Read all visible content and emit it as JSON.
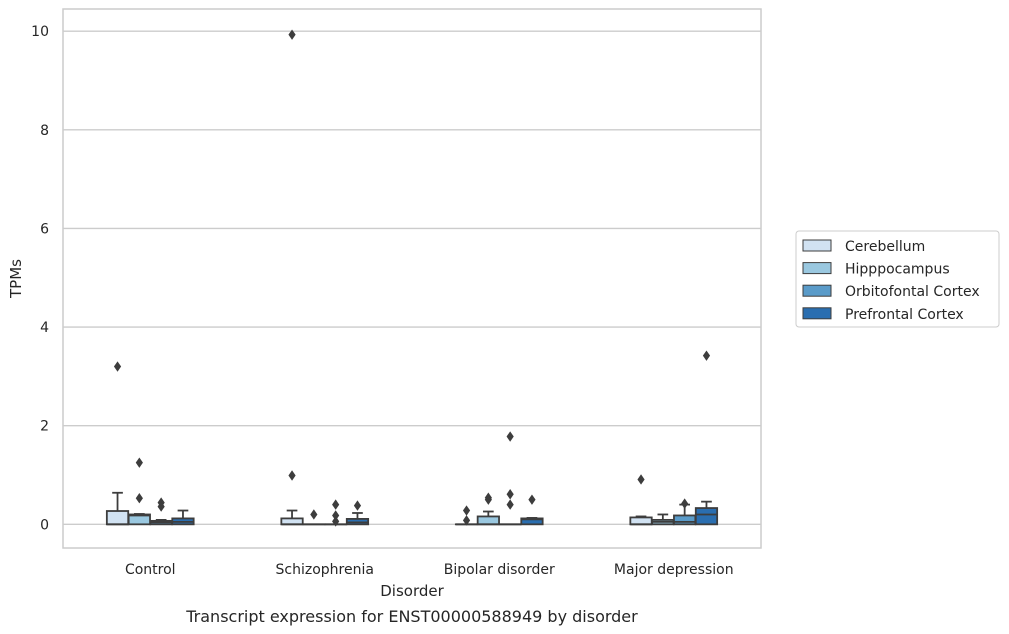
{
  "chart_data": {
    "type": "box",
    "caption": "Transcript expression for ENST00000588949 by disorder",
    "xlabel": "Disorder",
    "ylabel": "TPMs",
    "ylim": [
      -0.48,
      10.45
    ],
    "yticks": [
      0,
      2,
      4,
      6,
      8,
      10
    ],
    "grid": true,
    "legend_placement": "right",
    "categories": [
      "Control",
      "Schizophrenia",
      "Bipolar disorder",
      "Major depression"
    ],
    "series": [
      {
        "name": "Cerebellum",
        "color": "#d1e2f2",
        "boxes": [
          {
            "min": 0,
            "q1": 0,
            "median": 0,
            "q3": 0.27,
            "max": 0.64,
            "outliers": [
              3.2
            ]
          },
          {
            "min": 0,
            "q1": 0,
            "median": 0,
            "q3": 0.12,
            "max": 0.28,
            "outliers": [
              9.93,
              0.99
            ]
          },
          {
            "min": 0,
            "q1": 0,
            "median": 0,
            "q3": 0,
            "max": 0,
            "outliers": [
              0.28,
              0.08
            ]
          },
          {
            "min": 0,
            "q1": 0,
            "median": 0,
            "q3": 0.14,
            "max": 0.16,
            "outliers": [
              0.91
            ]
          }
        ]
      },
      {
        "name": "Hipppocampus",
        "color": "#9ac8e0",
        "boxes": [
          {
            "min": 0,
            "q1": 0,
            "median": 0.18,
            "q3": 0.2,
            "max": 0.21,
            "outliers": [
              1.25,
              0.53
            ]
          },
          {
            "min": 0,
            "q1": 0,
            "median": 0,
            "q3": 0,
            "max": 0,
            "outliers": [
              0.2
            ]
          },
          {
            "min": 0,
            "q1": 0,
            "median": 0,
            "q3": 0.16,
            "max": 0.26,
            "outliers": [
              0.54,
              0.5
            ]
          },
          {
            "min": 0,
            "q1": 0,
            "median": 0.05,
            "q3": 0.09,
            "max": 0.2,
            "outliers": []
          }
        ]
      },
      {
        "name": "Orbitofontal Cortex",
        "color": "#5a9bc9",
        "boxes": [
          {
            "min": 0,
            "q1": 0,
            "median": 0.04,
            "q3": 0.07,
            "max": 0.09,
            "outliers": [
              0.44,
              0.36
            ]
          },
          {
            "min": 0,
            "q1": 0,
            "median": 0,
            "q3": 0,
            "max": 0,
            "outliers": [
              0.4,
              0.18,
              0.06
            ]
          },
          {
            "min": 0,
            "q1": 0,
            "median": 0,
            "q3": 0,
            "max": 0,
            "outliers": [
              1.78,
              0.61,
              0.4
            ]
          },
          {
            "min": 0,
            "q1": 0,
            "median": 0.05,
            "q3": 0.18,
            "max": 0.4,
            "outliers": [
              0.42
            ]
          }
        ]
      },
      {
        "name": "Prefrontal Cortex",
        "color": "#2a6eb0",
        "boxes": [
          {
            "min": 0,
            "q1": 0,
            "median": 0.05,
            "q3": 0.12,
            "max": 0.28,
            "outliers": []
          },
          {
            "min": 0,
            "q1": 0,
            "median": 0.04,
            "q3": 0.11,
            "max": 0.23,
            "outliers": [
              0.38
            ]
          },
          {
            "min": 0,
            "q1": 0,
            "median": 0.1,
            "q3": 0.12,
            "max": 0.13,
            "outliers": [
              0.5
            ]
          },
          {
            "min": 0,
            "q1": 0,
            "median": 0.2,
            "q3": 0.33,
            "max": 0.46,
            "outliers": [
              3.42
            ]
          }
        ]
      }
    ]
  }
}
